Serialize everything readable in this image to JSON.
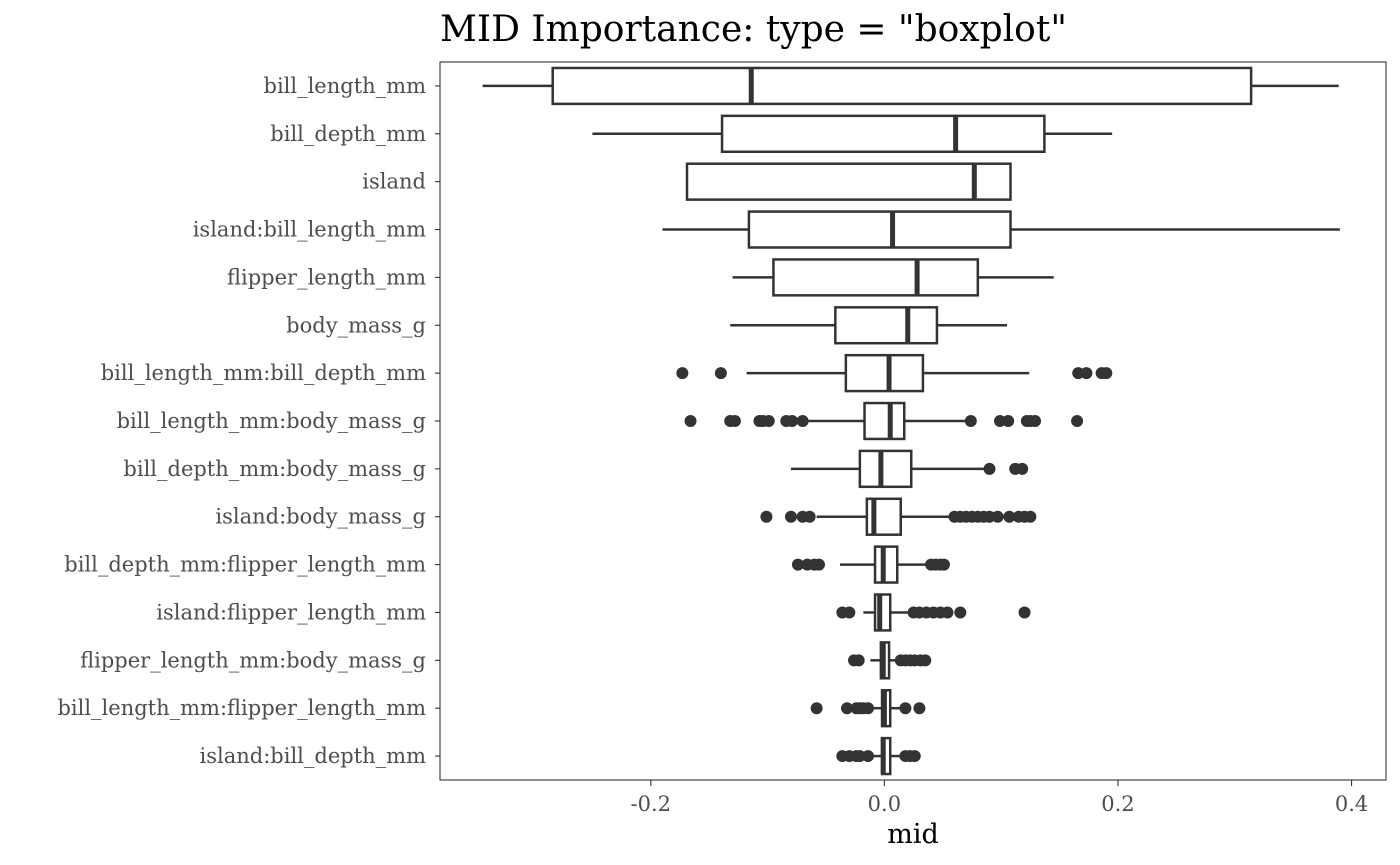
{
  "chart_data": {
    "type": "boxplot",
    "title": "MID Importance: type = \"boxplot\"",
    "xlabel": "mid",
    "ylabel": "",
    "xlim": [
      -0.3805,
      0.4295
    ],
    "x_ticks": [
      -0.2,
      0.0,
      0.2,
      0.4
    ],
    "x_tick_labels": [
      "-0.2",
      "0.0",
      "0.2",
      "0.4"
    ],
    "grid": false,
    "box_color": "#333333",
    "series": [
      {
        "name": "bill_length_mm",
        "whisker_low": -0.344,
        "q1": -0.284,
        "median": -0.114,
        "q3": 0.314,
        "whisker_high": 0.389,
        "outliers": []
      },
      {
        "name": "bill_depth_mm",
        "whisker_low": -0.25,
        "q1": -0.139,
        "median": 0.061,
        "q3": 0.137,
        "whisker_high": 0.195,
        "outliers": []
      },
      {
        "name": "island",
        "whisker_low": -0.169,
        "q1": -0.169,
        "median": 0.077,
        "q3": 0.108,
        "whisker_high": 0.108,
        "outliers": []
      },
      {
        "name": "island:bill_length_mm",
        "whisker_low": -0.19,
        "q1": -0.116,
        "median": 0.007,
        "q3": 0.108,
        "whisker_high": 0.39,
        "outliers": []
      },
      {
        "name": "flipper_length_mm",
        "whisker_low": -0.13,
        "q1": -0.095,
        "median": 0.028,
        "q3": 0.08,
        "whisker_high": 0.145,
        "outliers": []
      },
      {
        "name": "body_mass_g",
        "whisker_low": -0.132,
        "q1": -0.042,
        "median": 0.02,
        "q3": 0.045,
        "whisker_high": 0.105,
        "outliers": []
      },
      {
        "name": "bill_length_mm:bill_depth_mm",
        "whisker_low": -0.118,
        "q1": -0.033,
        "median": 0.004,
        "q3": 0.033,
        "whisker_high": 0.124,
        "outliers": [
          -0.173,
          -0.14,
          0.166,
          0.173,
          0.186,
          0.19
        ]
      },
      {
        "name": "bill_length_mm:body_mass_g",
        "whisker_low": -0.068,
        "q1": -0.017,
        "median": 0.005,
        "q3": 0.017,
        "whisker_high": 0.069,
        "outliers": [
          -0.166,
          -0.132,
          -0.128,
          -0.107,
          -0.104,
          -0.099,
          -0.084,
          -0.079,
          -0.07,
          0.074,
          0.099,
          0.106,
          0.122,
          0.125,
          0.129,
          0.165
        ]
      },
      {
        "name": "bill_depth_mm:body_mass_g",
        "whisker_low": -0.08,
        "q1": -0.021,
        "median": -0.003,
        "q3": 0.023,
        "whisker_high": 0.091,
        "outliers": [
          0.09,
          0.112,
          0.118
        ]
      },
      {
        "name": "island:body_mass_g",
        "whisker_low": -0.058,
        "q1": -0.015,
        "median": -0.009,
        "q3": 0.014,
        "whisker_high": 0.06,
        "outliers": [
          -0.101,
          -0.08,
          -0.07,
          -0.064,
          0.06,
          0.065,
          0.07,
          0.075,
          0.08,
          0.085,
          0.09,
          0.097,
          0.107,
          0.115,
          0.12,
          0.125
        ]
      },
      {
        "name": "bill_depth_mm:flipper_length_mm",
        "whisker_low": -0.038,
        "q1": -0.008,
        "median": -0.001,
        "q3": 0.011,
        "whisker_high": 0.04,
        "outliers": [
          -0.074,
          -0.066,
          -0.06,
          -0.056,
          0.04,
          0.044,
          0.048,
          0.051
        ]
      },
      {
        "name": "island:flipper_length_mm",
        "whisker_low": -0.018,
        "q1": -0.008,
        "median": -0.004,
        "q3": 0.005,
        "whisker_high": 0.024,
        "outliers": [
          -0.036,
          -0.03,
          0.025,
          0.03,
          0.036,
          0.042,
          0.048,
          0.054,
          0.065,
          0.12
        ]
      },
      {
        "name": "flipper_length_mm:body_mass_g",
        "whisker_low": -0.012,
        "q1": -0.003,
        "median": -0.001,
        "q3": 0.004,
        "whisker_high": 0.013,
        "outliers": [
          -0.026,
          -0.022,
          0.014,
          0.018,
          0.022,
          0.026,
          0.031,
          0.035
        ]
      },
      {
        "name": "bill_length_mm:flipper_length_mm",
        "whisker_low": -0.01,
        "q1": -0.002,
        "median": 0.0,
        "q3": 0.005,
        "whisker_high": 0.013,
        "outliers": [
          -0.058,
          -0.032,
          -0.024,
          -0.021,
          -0.018,
          -0.014,
          0.018,
          0.03
        ]
      },
      {
        "name": "island:bill_depth_mm",
        "whisker_low": -0.011,
        "q1": -0.002,
        "median": -0.001,
        "q3": 0.005,
        "whisker_high": 0.015,
        "outliers": [
          -0.036,
          -0.03,
          -0.024,
          -0.021,
          -0.014,
          0.018,
          0.022,
          0.026
        ]
      }
    ]
  }
}
